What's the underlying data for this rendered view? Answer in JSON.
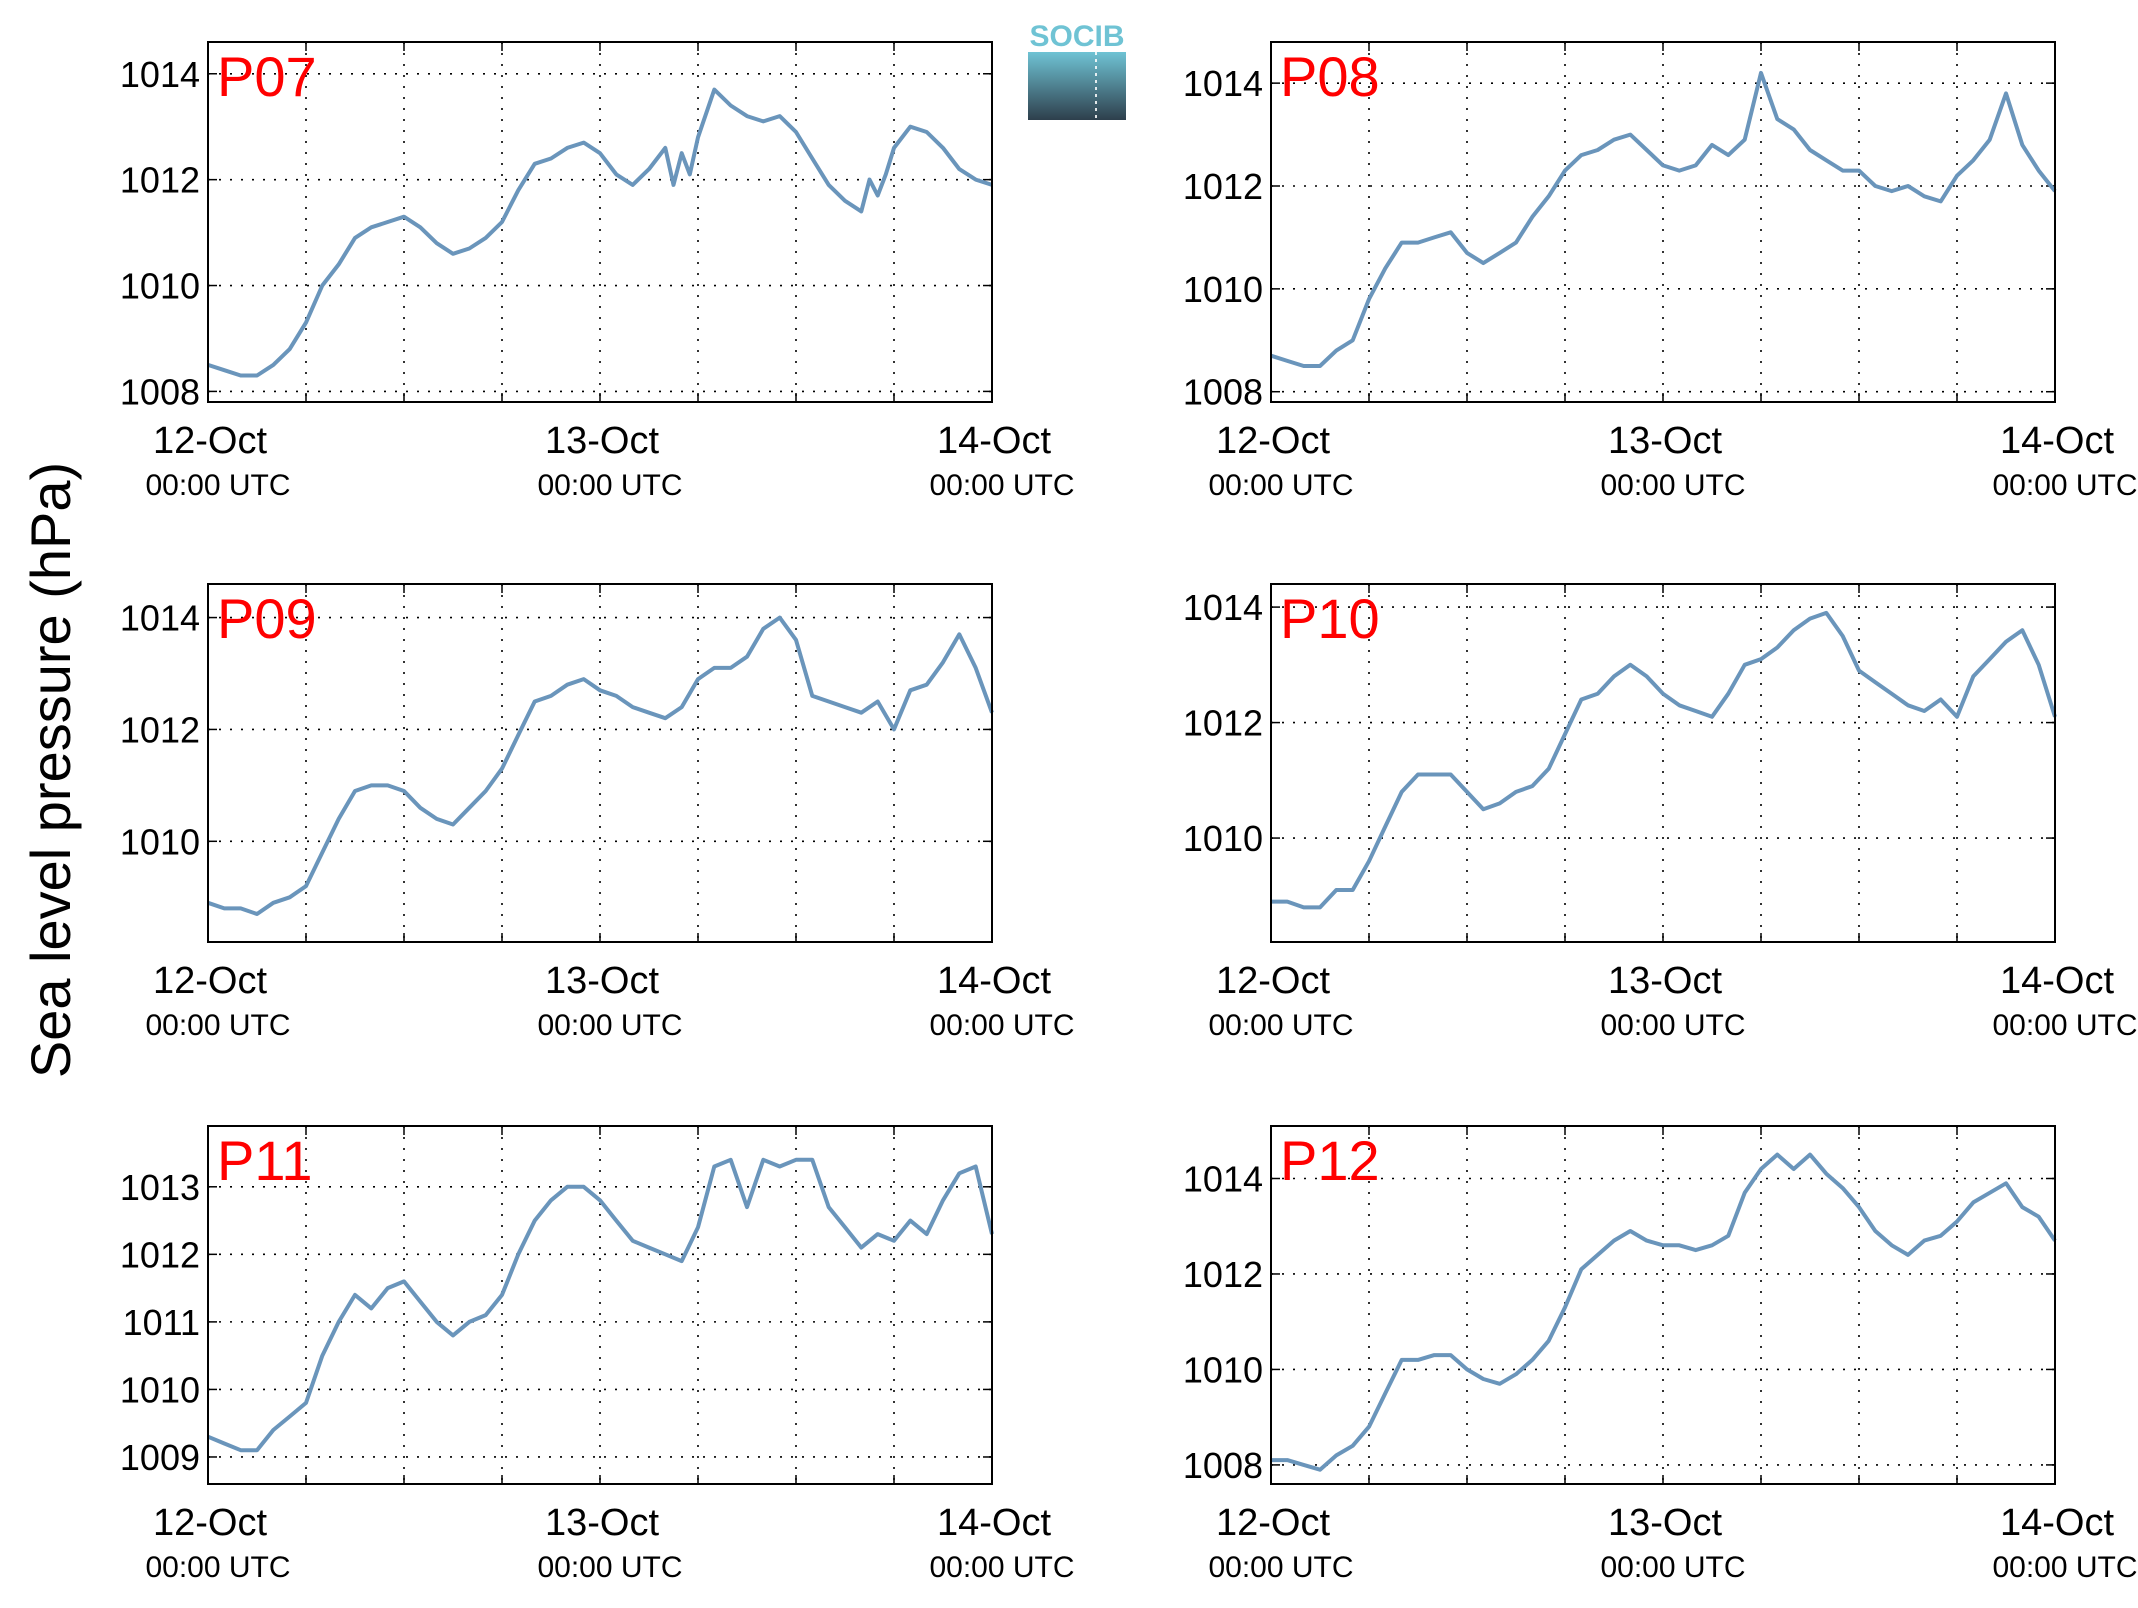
{
  "figure": {
    "ylabel": "Sea level pressure (hPa)",
    "logo_text": "SOCIB"
  },
  "colors": {
    "line": "#6a95bb",
    "station_label": "#ff0000",
    "logo_top": "#6fc3d4",
    "logo_bottom": "#2e3f4c"
  },
  "chart_data": [
    {
      "type": "line",
      "station": "P07",
      "x_ticks": [
        {
          "day": "12-Oct",
          "time": "00:00 UTC"
        },
        {
          "day": "13-Oct",
          "time": "00:00 UTC"
        },
        {
          "day": "14-Oct",
          "time": "00:00 UTC"
        }
      ],
      "xlim_hours": [
        0,
        48
      ],
      "ylim": [
        1007.8,
        1014.6
      ],
      "yticks": [
        1008,
        1010,
        1012,
        1014
      ],
      "grid": true,
      "series": [
        {
          "x_hours": [
            0,
            1,
            2,
            3,
            4,
            5,
            6,
            7,
            8,
            9,
            10,
            11,
            12,
            13,
            14,
            15,
            16,
            17,
            18,
            19,
            20,
            21,
            22,
            23,
            24,
            25,
            26,
            27,
            28,
            28.5,
            29,
            29.5,
            30,
            31,
            32,
            33,
            34,
            35,
            36,
            37,
            38,
            39,
            40,
            40.5,
            41,
            41.5,
            42,
            43,
            44,
            45,
            46,
            47,
            48
          ],
          "values": [
            1008.5,
            1008.4,
            1008.3,
            1008.3,
            1008.5,
            1008.8,
            1009.3,
            1010.0,
            1010.4,
            1010.9,
            1011.1,
            1011.2,
            1011.3,
            1011.1,
            1010.8,
            1010.6,
            1010.7,
            1010.9,
            1011.2,
            1011.8,
            1012.3,
            1012.4,
            1012.6,
            1012.7,
            1012.5,
            1012.1,
            1011.9,
            1012.2,
            1012.6,
            1011.9,
            1012.5,
            1012.1,
            1012.8,
            1013.7,
            1013.4,
            1013.2,
            1013.1,
            1013.2,
            1012.9,
            1012.4,
            1011.9,
            1011.6,
            1011.4,
            1012.0,
            1011.7,
            1012.1,
            1012.6,
            1013.0,
            1012.9,
            1012.6,
            1012.2,
            1012.0,
            1011.9
          ]
        }
      ]
    },
    {
      "type": "line",
      "station": "P08",
      "x_ticks": [
        {
          "day": "12-Oct",
          "time": "00:00 UTC"
        },
        {
          "day": "13-Oct",
          "time": "00:00 UTC"
        },
        {
          "day": "14-Oct",
          "time": "00:00 UTC"
        }
      ],
      "xlim_hours": [
        0,
        48
      ],
      "ylim": [
        1007.8,
        1014.8
      ],
      "yticks": [
        1008,
        1010,
        1012,
        1014
      ],
      "grid": true,
      "series": [
        {
          "x_hours": [
            0,
            1,
            2,
            3,
            4,
            5,
            6,
            7,
            8,
            9,
            10,
            11,
            12,
            13,
            14,
            15,
            16,
            17,
            18,
            19,
            20,
            21,
            22,
            23,
            24,
            25,
            26,
            27,
            28,
            29,
            30,
            31,
            32,
            33,
            34,
            35,
            36,
            37,
            38,
            39,
            40,
            41,
            42,
            43,
            44,
            45,
            46,
            47,
            48
          ],
          "values": [
            1008.7,
            1008.6,
            1008.5,
            1008.5,
            1008.8,
            1009.0,
            1009.8,
            1010.4,
            1010.9,
            1010.9,
            1011.0,
            1011.1,
            1010.7,
            1010.5,
            1010.7,
            1010.9,
            1011.4,
            1011.8,
            1012.3,
            1012.6,
            1012.7,
            1012.9,
            1013.0,
            1012.7,
            1012.4,
            1012.3,
            1012.4,
            1012.8,
            1012.6,
            1012.9,
            1014.2,
            1013.3,
            1013.1,
            1012.7,
            1012.5,
            1012.3,
            1012.3,
            1012.0,
            1011.9,
            1012.0,
            1011.8,
            1011.7,
            1012.2,
            1012.5,
            1012.9,
            1013.8,
            1012.8,
            1012.3,
            1011.9
          ]
        }
      ]
    },
    {
      "type": "line",
      "station": "P09",
      "x_ticks": [
        {
          "day": "12-Oct",
          "time": "00:00 UTC"
        },
        {
          "day": "13-Oct",
          "time": "00:00 UTC"
        },
        {
          "day": "14-Oct",
          "time": "00:00 UTC"
        }
      ],
      "xlim_hours": [
        0,
        48
      ],
      "ylim": [
        1008.2,
        1014.6
      ],
      "yticks": [
        1010,
        1012,
        1014
      ],
      "grid": true,
      "series": [
        {
          "x_hours": [
            0,
            1,
            2,
            3,
            4,
            5,
            6,
            7,
            8,
            9,
            10,
            11,
            12,
            13,
            14,
            15,
            16,
            17,
            18,
            19,
            20,
            21,
            22,
            23,
            24,
            25,
            26,
            27,
            28,
            29,
            30,
            31,
            32,
            33,
            34,
            35,
            36,
            37,
            38,
            39,
            40,
            41,
            42,
            43,
            44,
            45,
            46,
            47,
            48
          ],
          "values": [
            1008.9,
            1008.8,
            1008.8,
            1008.7,
            1008.9,
            1009.0,
            1009.2,
            1009.8,
            1010.4,
            1010.9,
            1011.0,
            1011.0,
            1010.9,
            1010.6,
            1010.4,
            1010.3,
            1010.6,
            1010.9,
            1011.3,
            1011.9,
            1012.5,
            1012.6,
            1012.8,
            1012.9,
            1012.7,
            1012.6,
            1012.4,
            1012.3,
            1012.2,
            1012.4,
            1012.9,
            1013.1,
            1013.1,
            1013.3,
            1013.8,
            1014.0,
            1013.6,
            1012.6,
            1012.5,
            1012.4,
            1012.3,
            1012.5,
            1012.0,
            1012.7,
            1012.8,
            1013.2,
            1013.7,
            1013.1,
            1012.3
          ]
        }
      ]
    },
    {
      "type": "line",
      "station": "P10",
      "x_ticks": [
        {
          "day": "12-Oct",
          "time": "00:00 UTC"
        },
        {
          "day": "13-Oct",
          "time": "00:00 UTC"
        },
        {
          "day": "14-Oct",
          "time": "00:00 UTC"
        }
      ],
      "xlim_hours": [
        0,
        48
      ],
      "ylim": [
        1008.2,
        1014.4
      ],
      "yticks": [
        1010,
        1012,
        1014
      ],
      "grid": true,
      "series": [
        {
          "x_hours": [
            0,
            1,
            2,
            3,
            4,
            5,
            6,
            7,
            8,
            9,
            10,
            11,
            12,
            13,
            14,
            15,
            16,
            17,
            18,
            19,
            20,
            21,
            22,
            23,
            24,
            25,
            26,
            27,
            28,
            29,
            30,
            31,
            32,
            33,
            34,
            35,
            36,
            37,
            38,
            39,
            40,
            41,
            42,
            43,
            44,
            45,
            46,
            47,
            48
          ],
          "values": [
            1008.9,
            1008.9,
            1008.8,
            1008.8,
            1009.1,
            1009.1,
            1009.6,
            1010.2,
            1010.8,
            1011.1,
            1011.1,
            1011.1,
            1010.8,
            1010.5,
            1010.6,
            1010.8,
            1010.9,
            1011.2,
            1011.8,
            1012.4,
            1012.5,
            1012.8,
            1013.0,
            1012.8,
            1012.5,
            1012.3,
            1012.2,
            1012.1,
            1012.5,
            1013.0,
            1013.1,
            1013.3,
            1013.6,
            1013.8,
            1013.9,
            1013.5,
            1012.9,
            1012.7,
            1012.5,
            1012.3,
            1012.2,
            1012.4,
            1012.1,
            1012.8,
            1013.1,
            1013.4,
            1013.6,
            1013.0,
            1012.1
          ]
        }
      ]
    },
    {
      "type": "line",
      "station": "P11",
      "x_ticks": [
        {
          "day": "12-Oct",
          "time": "00:00 UTC"
        },
        {
          "day": "13-Oct",
          "time": "00:00 UTC"
        },
        {
          "day": "14-Oct",
          "time": "00:00 UTC"
        }
      ],
      "xlim_hours": [
        0,
        48
      ],
      "ylim": [
        1008.6,
        1013.9
      ],
      "yticks": [
        1009,
        1010,
        1011,
        1012,
        1013
      ],
      "grid": true,
      "series": [
        {
          "x_hours": [
            0,
            1,
            2,
            3,
            4,
            5,
            6,
            7,
            8,
            9,
            10,
            11,
            12,
            13,
            14,
            15,
            16,
            17,
            18,
            19,
            20,
            21,
            22,
            23,
            24,
            25,
            26,
            27,
            28,
            29,
            30,
            31,
            32,
            33,
            34,
            35,
            36,
            37,
            38,
            39,
            40,
            41,
            42,
            43,
            44,
            45,
            46,
            47,
            48
          ],
          "values": [
            1009.3,
            1009.2,
            1009.1,
            1009.1,
            1009.4,
            1009.6,
            1009.8,
            1010.5,
            1011.0,
            1011.4,
            1011.2,
            1011.5,
            1011.6,
            1011.3,
            1011.0,
            1010.8,
            1011.0,
            1011.1,
            1011.4,
            1012.0,
            1012.5,
            1012.8,
            1013.0,
            1013.0,
            1012.8,
            1012.5,
            1012.2,
            1012.1,
            1012.0,
            1011.9,
            1012.4,
            1013.3,
            1013.4,
            1012.7,
            1013.4,
            1013.3,
            1013.4,
            1013.4,
            1012.7,
            1012.4,
            1012.1,
            1012.3,
            1012.2,
            1012.5,
            1012.3,
            1012.8,
            1013.2,
            1013.3,
            1012.3
          ]
        }
      ]
    },
    {
      "type": "line",
      "station": "P12",
      "x_ticks": [
        {
          "day": "12-Oct",
          "time": "00:00 UTC"
        },
        {
          "day": "13-Oct",
          "time": "00:00 UTC"
        },
        {
          "day": "14-Oct",
          "time": "00:00 UTC"
        }
      ],
      "xlim_hours": [
        0,
        48
      ],
      "ylim": [
        1007.6,
        1015.1
      ],
      "yticks": [
        1008,
        1010,
        1012,
        1014
      ],
      "grid": true,
      "series": [
        {
          "x_hours": [
            0,
            1,
            2,
            3,
            4,
            5,
            6,
            7,
            8,
            9,
            10,
            11,
            12,
            13,
            14,
            15,
            16,
            17,
            18,
            19,
            20,
            21,
            22,
            23,
            24,
            25,
            26,
            27,
            28,
            29,
            30,
            31,
            32,
            33,
            34,
            35,
            36,
            37,
            38,
            39,
            40,
            41,
            42,
            43,
            44,
            45,
            46,
            47,
            48
          ],
          "values": [
            1008.1,
            1008.1,
            1008.0,
            1007.9,
            1008.2,
            1008.4,
            1008.8,
            1009.5,
            1010.2,
            1010.2,
            1010.3,
            1010.3,
            1010.0,
            1009.8,
            1009.7,
            1009.9,
            1010.2,
            1010.6,
            1011.3,
            1012.1,
            1012.4,
            1012.7,
            1012.9,
            1012.7,
            1012.6,
            1012.6,
            1012.5,
            1012.6,
            1012.8,
            1013.7,
            1014.2,
            1014.5,
            1014.2,
            1014.5,
            1014.1,
            1013.8,
            1013.4,
            1012.9,
            1012.6,
            1012.4,
            1012.7,
            1012.8,
            1013.1,
            1013.5,
            1013.7,
            1013.9,
            1013.4,
            1013.2,
            1012.7
          ]
        }
      ]
    }
  ]
}
